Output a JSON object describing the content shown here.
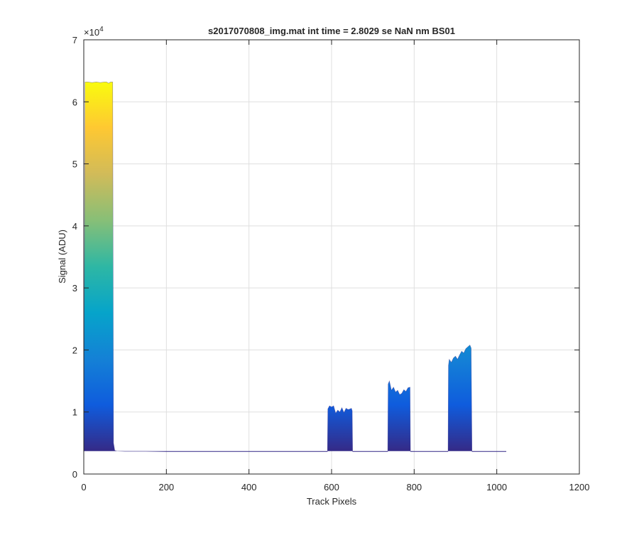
{
  "chart_data": {
    "type": "area",
    "title": "s2017070808_img.mat int time = 2.8029 se  NaN nm BS01",
    "xlabel": "Track Pixels",
    "ylabel": "Signal (ADU)",
    "xlim": [
      0,
      1200
    ],
    "ylim": [
      0,
      70000
    ],
    "xticks": [
      0,
      200,
      400,
      600,
      800,
      1000,
      1200
    ],
    "yticks": [
      0,
      1,
      2,
      3,
      4,
      5,
      6,
      7
    ],
    "ytick_labels": [
      "0",
      "1",
      "2",
      "3",
      "4",
      "5",
      "6",
      "7"
    ],
    "y_multiplier": "×10",
    "y_multiplier_exponent": "4",
    "grid": true,
    "colormap": "parula",
    "colormap_colors": [
      "#352a87",
      "#0f5cdd",
      "#1481d6",
      "#06a4ca",
      "#2eb7a4",
      "#87bf77",
      "#d1bb59",
      "#fec832",
      "#f9fb0e"
    ],
    "baseline": 3700,
    "series": [
      {
        "x": [
          0,
          3,
          10,
          20,
          30,
          40,
          50,
          55,
          60,
          65,
          70,
          72,
          75,
          80,
          100,
          150,
          200,
          300,
          400,
          500,
          580,
          590,
          591,
          595,
          600,
          605,
          610,
          615,
          620,
          625,
          630,
          635,
          640,
          645,
          648,
          650,
          651,
          660,
          700,
          730,
          736,
          737,
          740,
          745,
          750,
          755,
          760,
          765,
          770,
          775,
          780,
          785,
          790,
          791,
          800,
          850,
          880,
          882,
          883,
          885,
          890,
          895,
          900,
          905,
          910,
          915,
          920,
          925,
          930,
          935,
          938,
          940,
          941,
          950,
          1000,
          1020,
          1023
        ],
        "y": [
          3700,
          63200,
          63200,
          63100,
          63200,
          63100,
          63200,
          63200,
          63000,
          63200,
          63200,
          5000,
          3800,
          3700,
          3650,
          3650,
          3600,
          3600,
          3600,
          3600,
          3600,
          3600,
          10500,
          11000,
          10800,
          11000,
          9800,
          10300,
          10000,
          10700,
          9900,
          10600,
          10400,
          10500,
          10600,
          10200,
          3600,
          3600,
          3600,
          3600,
          3600,
          14500,
          15000,
          13500,
          14000,
          13200,
          13500,
          12800,
          13000,
          13600,
          13300,
          13900,
          14000,
          3600,
          3600,
          3600,
          3600,
          3600,
          17500,
          18500,
          18000,
          18700,
          19000,
          18500,
          19200,
          19800,
          19500,
          20200,
          20500,
          20800,
          20300,
          3600,
          3600,
          3600,
          3600,
          3600,
          3600
        ]
      }
    ]
  }
}
